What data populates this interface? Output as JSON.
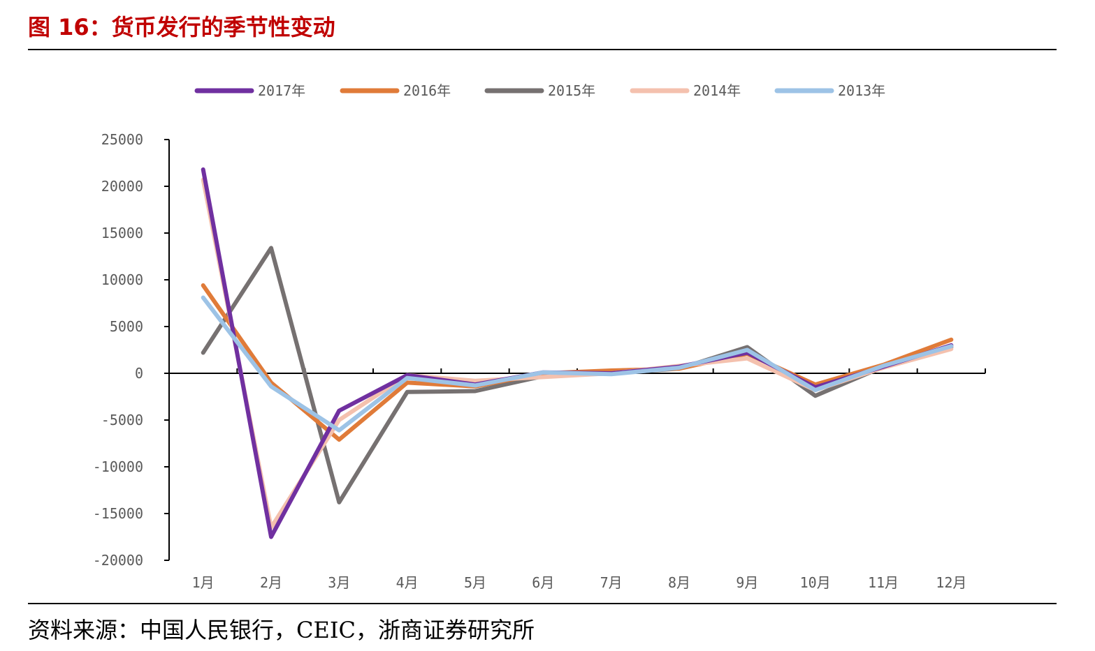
{
  "header": {
    "title": "图 16：货币发行的季节性变动"
  },
  "footer": {
    "source": "资料来源：中国人民银行，CEIC，浙商证券研究所"
  },
  "chart_data": {
    "type": "line",
    "title": "",
    "xlabel": "",
    "ylabel": "",
    "categories": [
      "1月",
      "2月",
      "3月",
      "4月",
      "5月",
      "6月",
      "7月",
      "8月",
      "9月",
      "10月",
      "11月",
      "12月"
    ],
    "ylim": [
      -20000,
      25000
    ],
    "yticks": [
      25000,
      20000,
      15000,
      10000,
      5000,
      0,
      -5000,
      -10000,
      -15000,
      -20000
    ],
    "grid": false,
    "legend_position": "top-center",
    "series": [
      {
        "name": "2017年",
        "color": "#7030a0",
        "values": [
          21800,
          -17500,
          -4000,
          -200,
          -1200,
          100,
          0,
          700,
          2200,
          -1500,
          700,
          3000
        ]
      },
      {
        "name": "2016年",
        "color": "#e07b39",
        "values": [
          9400,
          -1000,
          -7100,
          -1000,
          -1400,
          0,
          300,
          500,
          2100,
          -1200,
          900,
          3600
        ]
      },
      {
        "name": "2015年",
        "color": "#767171",
        "values": [
          2200,
          13400,
          -13800,
          -2000,
          -1900,
          -300,
          0,
          500,
          2800,
          -2400,
          700,
          2800
        ]
      },
      {
        "name": "2014年",
        "color": "#f4c1ae",
        "values": [
          20700,
          -16500,
          -5000,
          -200,
          -800,
          -400,
          0,
          800,
          1600,
          -1800,
          600,
          2600
        ]
      },
      {
        "name": "2013年",
        "color": "#9dc3e6",
        "values": [
          8100,
          -1400,
          -6100,
          -500,
          -1300,
          100,
          -100,
          600,
          2500,
          -1800,
          800,
          2900
        ]
      }
    ]
  }
}
